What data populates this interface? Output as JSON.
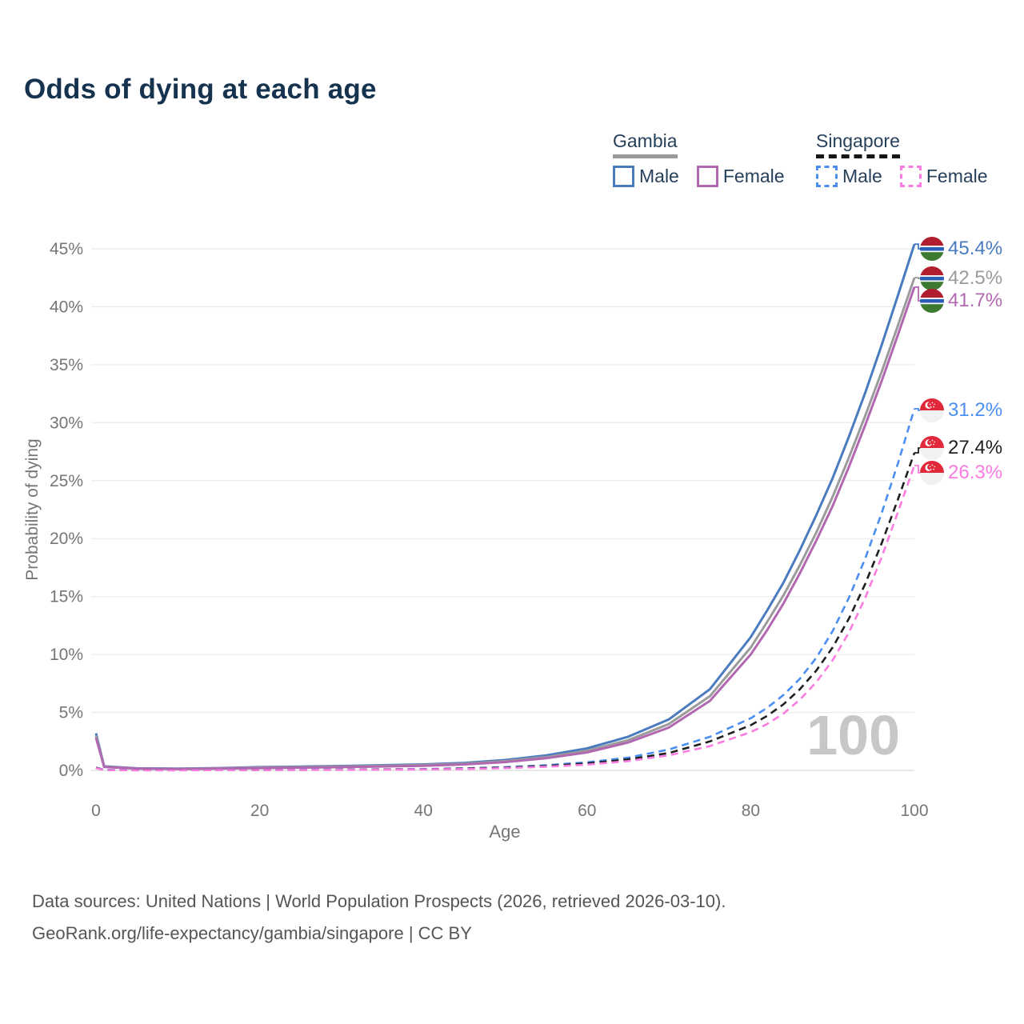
{
  "title": "Odds of dying at each age",
  "legend": {
    "groups": [
      {
        "country": "Gambia",
        "style": "solid",
        "items": [
          {
            "label": "Male",
            "color": "#4a7bbf"
          },
          {
            "label": "Female",
            "color": "#b168b1"
          }
        ]
      },
      {
        "country": "Singapore",
        "style": "dashed",
        "items": [
          {
            "label": "Male",
            "color": "#4b8ef2"
          },
          {
            "label": "Female",
            "color": "#fb7ce0"
          }
        ]
      }
    ]
  },
  "chart_data": {
    "type": "line",
    "title": "Odds of dying at each age",
    "xlabel": "Age",
    "ylabel": "Probability of dying",
    "xlim": [
      0,
      100
    ],
    "ylim": [
      0,
      45
    ],
    "x_ticks": [
      0,
      20,
      40,
      60,
      80,
      100
    ],
    "y_ticks": [
      0,
      5,
      10,
      15,
      20,
      25,
      30,
      35,
      40,
      45
    ],
    "y_tick_suffix": "%",
    "grid": true,
    "legend_position": "top-right",
    "annotation": "100",
    "x": [
      0,
      1,
      5,
      10,
      15,
      20,
      25,
      30,
      35,
      40,
      45,
      50,
      55,
      60,
      65,
      70,
      75,
      80,
      82,
      84,
      86,
      88,
      90,
      92,
      94,
      96,
      98,
      100
    ],
    "series": [
      {
        "name": "Gambia Male",
        "country": "Gambia",
        "sex": "Male",
        "color": "#4a7bbf",
        "dash": "solid",
        "end_label": "45.4%",
        "values": [
          3.2,
          0.35,
          0.18,
          0.15,
          0.2,
          0.28,
          0.33,
          0.38,
          0.45,
          0.52,
          0.65,
          0.9,
          1.3,
          1.9,
          2.9,
          4.4,
          7.0,
          11.5,
          13.8,
          16.2,
          19.0,
          22.0,
          25.2,
          28.8,
          32.6,
          36.7,
          41.0,
          45.4
        ]
      },
      {
        "name": "Gambia Both sexes",
        "country": "Gambia",
        "sex": "Both",
        "color": "#9b9b9b",
        "dash": "solid",
        "end_label": "42.5%",
        "values": [
          3.0,
          0.32,
          0.16,
          0.13,
          0.17,
          0.24,
          0.28,
          0.33,
          0.39,
          0.46,
          0.58,
          0.8,
          1.15,
          1.7,
          2.6,
          4.0,
          6.4,
          10.6,
          12.8,
          15.1,
          17.7,
          20.5,
          23.6,
          27.0,
          30.6,
          34.4,
          38.4,
          42.5
        ]
      },
      {
        "name": "Gambia Female",
        "country": "Gambia",
        "sex": "Female",
        "color": "#b168b1",
        "dash": "solid",
        "end_label": "41.7%",
        "values": [
          2.8,
          0.3,
          0.15,
          0.12,
          0.15,
          0.2,
          0.24,
          0.28,
          0.34,
          0.4,
          0.52,
          0.72,
          1.05,
          1.55,
          2.4,
          3.7,
          6.0,
          10.0,
          12.1,
          14.4,
          17.0,
          19.8,
          22.8,
          26.2,
          29.8,
          33.6,
          37.6,
          41.7
        ]
      },
      {
        "name": "Singapore Male",
        "country": "Singapore",
        "sex": "Male",
        "color": "#4b8ef2",
        "dash": "dashed",
        "end_label": "31.2%",
        "values": [
          0.25,
          0.04,
          0.02,
          0.02,
          0.03,
          0.05,
          0.06,
          0.07,
          0.09,
          0.12,
          0.18,
          0.28,
          0.45,
          0.7,
          1.1,
          1.8,
          2.9,
          4.5,
          5.4,
          6.5,
          7.9,
          9.7,
          12.0,
          14.9,
          18.3,
          22.2,
          26.5,
          31.2
        ]
      },
      {
        "name": "Singapore Both sexes",
        "country": "Singapore",
        "sex": "Both",
        "color": "#1f1f1f",
        "dash": "dashed",
        "end_label": "27.4%",
        "values": [
          0.22,
          0.03,
          0.02,
          0.02,
          0.02,
          0.04,
          0.05,
          0.06,
          0.08,
          0.1,
          0.15,
          0.24,
          0.38,
          0.6,
          0.95,
          1.5,
          2.5,
          3.9,
          4.7,
          5.7,
          7.0,
          8.6,
          10.6,
          13.1,
          16.1,
          19.6,
          23.4,
          27.4
        ]
      },
      {
        "name": "Singapore Female",
        "country": "Singapore",
        "sex": "Female",
        "color": "#fb7ce0",
        "dash": "dashed",
        "end_label": "26.3%",
        "values": [
          0.2,
          0.03,
          0.01,
          0.01,
          0.02,
          0.03,
          0.04,
          0.05,
          0.06,
          0.08,
          0.12,
          0.2,
          0.32,
          0.5,
          0.8,
          1.3,
          2.1,
          3.3,
          4.0,
          4.9,
          6.1,
          7.6,
          9.5,
          11.9,
          14.9,
          18.4,
          22.3,
          26.3
        ]
      }
    ]
  },
  "footer": {
    "line1": "Data sources: United Nations | World Population Prospects (2026, retrieved 2026-03-10).",
    "line2": "GeoRank.org/life-expectancy/gambia/singapore | CC BY"
  }
}
